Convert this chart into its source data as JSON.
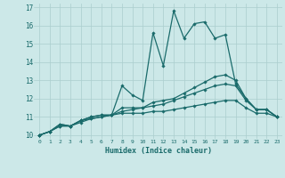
{
  "xlabel": "Humidex (Indice chaleur)",
  "xlim": [
    -0.5,
    23.5
  ],
  "ylim": [
    9.8,
    17.2
  ],
  "yticks": [
    10,
    11,
    12,
    13,
    14,
    15,
    16,
    17
  ],
  "xticks": [
    0,
    1,
    2,
    3,
    4,
    5,
    6,
    7,
    8,
    9,
    10,
    11,
    12,
    13,
    14,
    15,
    16,
    17,
    18,
    19,
    20,
    21,
    22,
    23
  ],
  "background_color": "#cce8e8",
  "line_color": "#1a6b6b",
  "grid_color": "#aacece",
  "series": [
    [
      10.0,
      10.2,
      10.6,
      10.5,
      10.8,
      11.0,
      11.1,
      11.1,
      12.7,
      12.2,
      11.9,
      15.6,
      13.8,
      16.8,
      15.3,
      16.1,
      16.2,
      15.3,
      15.5,
      12.8,
      12.0,
      11.4,
      11.4,
      11.0
    ],
    [
      10.0,
      10.2,
      10.6,
      10.5,
      10.8,
      11.0,
      11.1,
      11.1,
      11.5,
      11.5,
      11.5,
      11.8,
      11.9,
      12.0,
      12.3,
      12.6,
      12.9,
      13.2,
      13.3,
      13.0,
      12.0,
      11.4,
      11.4,
      11.0
    ],
    [
      10.0,
      10.2,
      10.5,
      10.5,
      10.8,
      10.9,
      11.0,
      11.1,
      11.3,
      11.4,
      11.5,
      11.6,
      11.7,
      11.9,
      12.1,
      12.3,
      12.5,
      12.7,
      12.8,
      12.7,
      11.9,
      11.4,
      11.4,
      11.0
    ],
    [
      10.0,
      10.2,
      10.5,
      10.5,
      10.7,
      10.9,
      11.0,
      11.1,
      11.2,
      11.2,
      11.2,
      11.3,
      11.3,
      11.4,
      11.5,
      11.6,
      11.7,
      11.8,
      11.9,
      11.9,
      11.5,
      11.2,
      11.2,
      11.0
    ]
  ]
}
